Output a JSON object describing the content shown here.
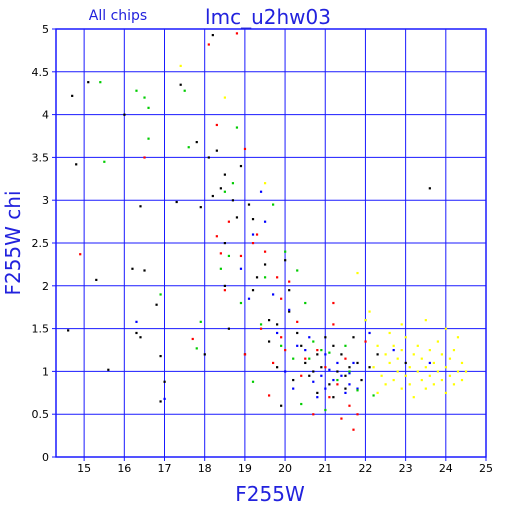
{
  "chart_data": {
    "type": "scatter",
    "title": "lmc_u2hw03",
    "subtitle": "All chips",
    "xlabel": "F255W",
    "ylabel": "F255W chi",
    "xlim": [
      14.3,
      25
    ],
    "ylim": [
      0,
      5
    ],
    "x_ticks": [
      15,
      16,
      17,
      18,
      19,
      20,
      21,
      22,
      23,
      24,
      25
    ],
    "y_ticks": [
      0,
      0.5,
      1,
      1.5,
      2,
      2.5,
      3,
      3.5,
      4,
      4.5,
      5
    ],
    "x_tick_labels": [
      "15",
      "16",
      "17",
      "18",
      "19",
      "20",
      "21",
      "22",
      "23",
      "24",
      "25"
    ],
    "y_tick_labels": [
      "0",
      "0.5",
      "1",
      "1.5",
      "2",
      "2.5",
      "3",
      "3.5",
      "4",
      "4.5",
      "5"
    ],
    "grid": true,
    "colors": {
      "axis": "#1a1aff",
      "grid": "#1a1aff",
      "text": "#2222dd",
      "background": "#ffffff"
    },
    "series": [
      {
        "color": "#000000",
        "points": [
          [
            14.7,
            4.22
          ],
          [
            14.8,
            3.42
          ],
          [
            15.1,
            4.38
          ],
          [
            14.6,
            1.48
          ],
          [
            15.3,
            2.07
          ],
          [
            15.6,
            1.02
          ],
          [
            16.0,
            4.0
          ],
          [
            16.2,
            2.2
          ],
          [
            16.3,
            1.45
          ],
          [
            16.4,
            1.4
          ],
          [
            16.4,
            2.93
          ],
          [
            16.5,
            2.18
          ],
          [
            16.8,
            1.78
          ],
          [
            16.9,
            1.18
          ],
          [
            17.0,
            0.88
          ],
          [
            16.9,
            0.65
          ],
          [
            17.3,
            2.98
          ],
          [
            17.4,
            4.35
          ],
          [
            17.8,
            3.68
          ],
          [
            17.9,
            2.92
          ],
          [
            18.0,
            1.2
          ],
          [
            18.1,
            3.5
          ],
          [
            18.2,
            3.05
          ],
          [
            18.2,
            4.93
          ],
          [
            18.3,
            3.58
          ],
          [
            18.4,
            3.14
          ],
          [
            18.5,
            3.3
          ],
          [
            18.5,
            2.5
          ],
          [
            18.6,
            1.5
          ],
          [
            18.5,
            2.0
          ],
          [
            18.7,
            3.0
          ],
          [
            18.8,
            2.8
          ],
          [
            18.9,
            3.4
          ],
          [
            19.0,
            1.2
          ],
          [
            19.1,
            2.95
          ],
          [
            19.2,
            2.78
          ],
          [
            19.2,
            1.95
          ],
          [
            19.3,
            2.1
          ],
          [
            19.5,
            2.25
          ],
          [
            19.6,
            1.6
          ],
          [
            19.6,
            1.35
          ],
          [
            19.8,
            1.05
          ],
          [
            19.8,
            1.55
          ],
          [
            20.0,
            2.3
          ],
          [
            20.1,
            1.7
          ],
          [
            20.1,
            1.95
          ],
          [
            20.3,
            1.45
          ],
          [
            20.4,
            1.3
          ],
          [
            20.5,
            1.1
          ],
          [
            20.6,
            0.95
          ],
          [
            20.7,
            1.0
          ],
          [
            20.8,
            1.2
          ],
          [
            20.8,
            0.75
          ],
          [
            20.9,
            1.05
          ],
          [
            21.0,
            1.4
          ],
          [
            21.1,
            0.85
          ],
          [
            21.2,
            1.3
          ],
          [
            21.2,
            0.7
          ],
          [
            21.3,
            1.0
          ],
          [
            21.4,
            1.2
          ],
          [
            21.5,
            0.95
          ],
          [
            21.5,
            0.8
          ],
          [
            21.6,
            1.05
          ],
          [
            21.7,
            1.4
          ],
          [
            21.8,
            1.1
          ],
          [
            21.9,
            0.9
          ],
          [
            22.1,
            1.05
          ],
          [
            22.3,
            1.2
          ],
          [
            23.6,
            3.14
          ],
          [
            23.0,
            1.1
          ],
          [
            20.2,
            0.9
          ],
          [
            19.9,
            0.6
          ]
        ]
      },
      {
        "color": "#ff0000",
        "points": [
          [
            14.9,
            2.37
          ],
          [
            16.5,
            3.5
          ],
          [
            17.7,
            1.38
          ],
          [
            18.1,
            4.82
          ],
          [
            18.3,
            2.58
          ],
          [
            18.3,
            3.88
          ],
          [
            18.4,
            2.38
          ],
          [
            18.5,
            1.95
          ],
          [
            18.6,
            2.75
          ],
          [
            18.8,
            4.95
          ],
          [
            18.9,
            2.35
          ],
          [
            19.0,
            3.6
          ],
          [
            19.0,
            1.2
          ],
          [
            19.2,
            2.5
          ],
          [
            19.3,
            2.6
          ],
          [
            19.4,
            1.5
          ],
          [
            19.5,
            2.4
          ],
          [
            19.6,
            0.72
          ],
          [
            19.7,
            1.1
          ],
          [
            19.8,
            2.1
          ],
          [
            19.9,
            1.4
          ],
          [
            20.0,
            1.25
          ],
          [
            20.1,
            2.05
          ],
          [
            20.3,
            1.58
          ],
          [
            20.4,
            0.95
          ],
          [
            20.5,
            1.15
          ],
          [
            20.7,
            0.5
          ],
          [
            20.8,
            1.25
          ],
          [
            21.0,
            1.05
          ],
          [
            21.1,
            0.7
          ],
          [
            21.2,
            1.55
          ],
          [
            21.3,
            0.85
          ],
          [
            21.4,
            0.45
          ],
          [
            21.5,
            1.15
          ],
          [
            21.6,
            0.6
          ],
          [
            21.7,
            0.32
          ],
          [
            21.8,
            0.5
          ],
          [
            22.0,
            1.35
          ],
          [
            21.2,
            1.8
          ],
          [
            19.9,
            1.85
          ]
        ]
      },
      {
        "color": "#0000ff",
        "points": [
          [
            16.3,
            1.58
          ],
          [
            17.0,
            0.68
          ],
          [
            18.9,
            2.2
          ],
          [
            19.1,
            1.85
          ],
          [
            19.2,
            2.6
          ],
          [
            19.4,
            3.1
          ],
          [
            19.5,
            2.75
          ],
          [
            19.7,
            1.9
          ],
          [
            19.8,
            1.45
          ],
          [
            20.0,
            1.0
          ],
          [
            20.1,
            1.72
          ],
          [
            20.2,
            0.8
          ],
          [
            20.3,
            1.3
          ],
          [
            20.5,
            1.25
          ],
          [
            20.6,
            1.4
          ],
          [
            20.7,
            0.88
          ],
          [
            20.8,
            0.7
          ],
          [
            20.9,
            0.95
          ],
          [
            21.0,
            1.2
          ],
          [
            21.0,
            0.8
          ],
          [
            21.1,
            1.02
          ],
          [
            21.2,
            0.9
          ],
          [
            21.3,
            1.1
          ],
          [
            21.4,
            0.95
          ],
          [
            21.5,
            0.75
          ],
          [
            21.6,
            0.98
          ],
          [
            21.6,
            0.85
          ],
          [
            21.7,
            1.1
          ],
          [
            21.8,
            0.8
          ],
          [
            22.1,
            1.45
          ],
          [
            23.6,
            1.1
          ],
          [
            22.7,
            1.25
          ]
        ]
      },
      {
        "color": "#00cc00",
        "points": [
          [
            15.4,
            4.38
          ],
          [
            15.5,
            3.45
          ],
          [
            16.3,
            4.28
          ],
          [
            16.5,
            4.2
          ],
          [
            16.6,
            4.08
          ],
          [
            16.6,
            3.72
          ],
          [
            16.9,
            1.9
          ],
          [
            17.5,
            4.28
          ],
          [
            17.6,
            3.62
          ],
          [
            17.8,
            1.27
          ],
          [
            17.9,
            1.58
          ],
          [
            18.4,
            2.2
          ],
          [
            18.5,
            3.1
          ],
          [
            18.6,
            2.35
          ],
          [
            18.7,
            3.2
          ],
          [
            18.8,
            3.85
          ],
          [
            18.9,
            1.8
          ],
          [
            19.2,
            0.88
          ],
          [
            19.4,
            1.55
          ],
          [
            19.5,
            2.1
          ],
          [
            19.7,
            2.95
          ],
          [
            19.9,
            1.3
          ],
          [
            20.0,
            2.4
          ],
          [
            20.2,
            1.15
          ],
          [
            20.3,
            2.18
          ],
          [
            20.5,
            1.8
          ],
          [
            20.6,
            1.15
          ],
          [
            20.7,
            1.35
          ],
          [
            20.9,
            1.25
          ],
          [
            21.0,
            0.55
          ],
          [
            21.1,
            1.22
          ],
          [
            21.3,
            0.9
          ],
          [
            21.5,
            1.3
          ],
          [
            21.8,
            0.78
          ],
          [
            22.2,
            0.72
          ],
          [
            22.0,
            1.6
          ],
          [
            21.6,
            1.0
          ],
          [
            20.4,
            0.62
          ]
        ]
      },
      {
        "color": "#ffff00",
        "points": [
          [
            17.4,
            4.57
          ],
          [
            18.5,
            4.2
          ],
          [
            19.5,
            3.2
          ],
          [
            22.1,
            1.7
          ],
          [
            22.2,
            1.05
          ],
          [
            22.3,
            1.3
          ],
          [
            22.4,
            0.95
          ],
          [
            22.5,
            1.2
          ],
          [
            22.5,
            0.85
          ],
          [
            22.6,
            1.1
          ],
          [
            22.6,
            1.45
          ],
          [
            22.7,
            0.9
          ],
          [
            22.7,
            1.3
          ],
          [
            22.8,
            1.0
          ],
          [
            22.8,
            1.15
          ],
          [
            22.9,
            0.8
          ],
          [
            22.9,
            1.25
          ],
          [
            23.0,
            0.95
          ],
          [
            23.0,
            1.4
          ],
          [
            23.1,
            1.05
          ],
          [
            23.1,
            0.85
          ],
          [
            23.2,
            1.2
          ],
          [
            23.2,
            0.7
          ],
          [
            23.3,
            1.0
          ],
          [
            23.3,
            1.3
          ],
          [
            23.4,
            0.9
          ],
          [
            23.4,
            1.15
          ],
          [
            23.5,
            1.05
          ],
          [
            23.5,
            0.8
          ],
          [
            23.6,
            1.25
          ],
          [
            23.6,
            0.95
          ],
          [
            23.7,
            1.1
          ],
          [
            23.7,
            0.85
          ],
          [
            23.8,
            1.0
          ],
          [
            23.8,
            1.35
          ],
          [
            23.9,
            0.9
          ],
          [
            23.9,
            1.2
          ],
          [
            24.0,
            1.05
          ],
          [
            24.0,
            0.75
          ],
          [
            24.1,
            1.15
          ],
          [
            24.1,
            0.95
          ],
          [
            24.2,
            1.25
          ],
          [
            24.2,
            0.85
          ],
          [
            24.3,
            1.0
          ],
          [
            24.3,
            1.4
          ],
          [
            24.4,
            0.9
          ],
          [
            24.4,
            1.1
          ],
          [
            24.5,
            1.0
          ],
          [
            22.3,
            0.75
          ],
          [
            22.9,
            1.55
          ],
          [
            23.5,
            1.6
          ],
          [
            24.0,
            1.5
          ],
          [
            21.8,
            2.15
          ],
          [
            22.0,
            1.6
          ]
        ]
      }
    ]
  }
}
